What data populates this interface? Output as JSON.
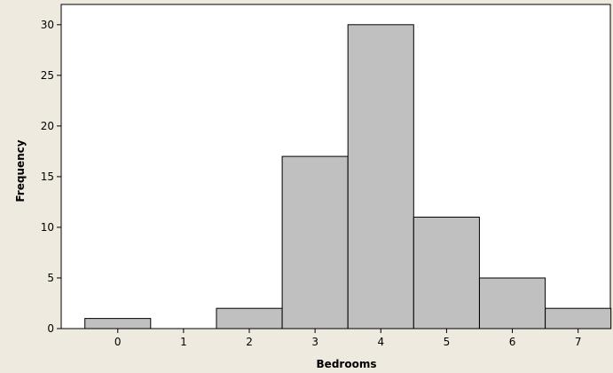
{
  "chart_data": {
    "type": "bar",
    "title": "",
    "xlabel": "Bedrooms",
    "ylabel": "Frequency",
    "categories": [
      "0",
      "1",
      "2",
      "3",
      "4",
      "5",
      "6",
      "7"
    ],
    "values": [
      1,
      0,
      2,
      17,
      30,
      11,
      5,
      2
    ],
    "ylim": [
      0,
      32
    ],
    "yticks": [
      "0",
      "5",
      "10",
      "15",
      "20",
      "25",
      "30"
    ],
    "grid": false,
    "legend": "none",
    "colors": {
      "bar_fill": "#c0c0c0",
      "bar_stroke": "#000000",
      "plot_background": "#ffffff",
      "page_background": "#efeadf"
    }
  }
}
